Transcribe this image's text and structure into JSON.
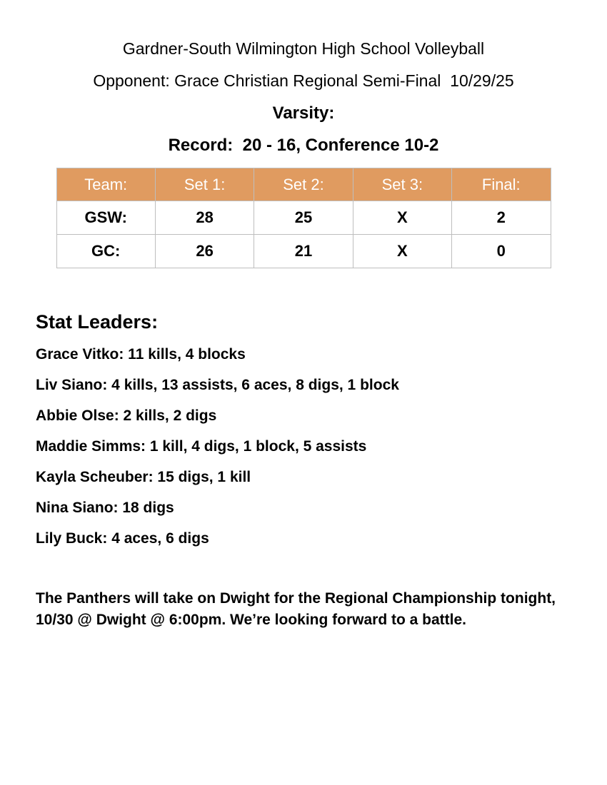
{
  "theme": {
    "page_bg": "#FFFFFF",
    "text_color": "#000000",
    "table_header_bg": "#E09B60",
    "table_header_text": "#FFFFFF",
    "table_border": "#BEBEBE"
  },
  "header": {
    "title": "Gardner-South Wilmington High School Volleyball",
    "opponent_line": "Opponent: Grace Christian Regional Semi-Final  10/29/25",
    "level_line": "Varsity:",
    "record_line": "Record:  20 - 16, Conference 10-2"
  },
  "score_table": {
    "columns": [
      "Team:",
      "Set 1:",
      "Set 2:",
      "Set 3:",
      "Final:"
    ],
    "rows": [
      [
        "GSW:",
        "28",
        "25",
        "X",
        "2"
      ],
      [
        "GC:",
        "26",
        "21",
        "X",
        "0"
      ]
    ]
  },
  "stats": {
    "heading": "Stat Leaders:",
    "leaders": [
      "Grace Vitko: 11 kills, 4 blocks",
      "Liv Siano: 4 kills, 13 assists, 6 aces, 8 digs, 1 block",
      "Abbie Olse: 2 kills, 2 digs",
      "Maddie Simms: 1 kill, 4 digs, 1 block, 5 assists",
      "Kayla Scheuber: 15 digs, 1 kill",
      "Nina Siano: 18 digs",
      "Lily Buck: 4 aces, 6 digs"
    ]
  },
  "closing": {
    "line1": "The Panthers will take on Dwight for the Regional Championship tonight,",
    "line2": "10/30 @ Dwight @ 6:00pm. We’re looking forward to a battle."
  }
}
